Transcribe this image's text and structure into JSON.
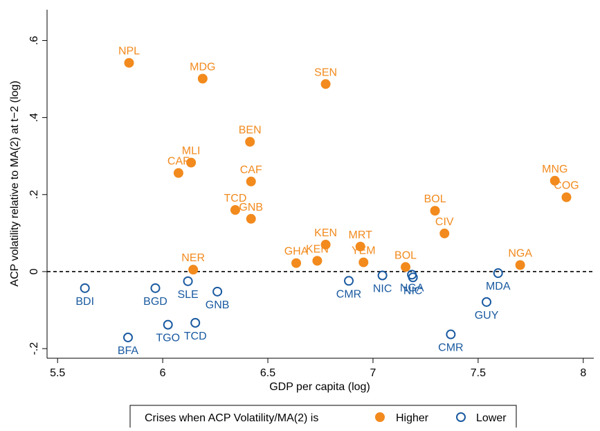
{
  "chart_data": {
    "type": "scatter",
    "xlabel": "GDP per capita (log)",
    "ylabel": "ACP volatility relative to MA(2) at t−2 (log)",
    "xlim": [
      5.45,
      8.05
    ],
    "ylim": [
      -0.225,
      0.68
    ],
    "x_ticks": [
      5.5,
      6,
      6.5,
      7,
      7.5,
      8
    ],
    "x_tick_labels": [
      "5.5",
      "6",
      "6.5",
      "7",
      "7.5",
      "8"
    ],
    "y_ticks": [
      -0.2,
      0,
      0.2,
      0.4,
      0.6
    ],
    "y_tick_labels": [
      "-.2",
      "0",
      ".2",
      ".4",
      ".6"
    ],
    "reference_line": {
      "y": 0,
      "style": "dashed"
    },
    "grid": false,
    "legend": {
      "title": "Crises when ACP Volatility/MA(2) is",
      "placement": "bottom",
      "entries": [
        "Higher",
        "Lower"
      ]
    },
    "colors": {
      "higher": "#f28a1d",
      "lower": "#1a5aa0"
    },
    "series": [
      {
        "name": "Higher",
        "marker": "filled-circle",
        "points": [
          {
            "x": 5.84,
            "y": 0.542,
            "label": "NPL"
          },
          {
            "x": 6.19,
            "y": 0.501,
            "label": "MDG"
          },
          {
            "x": 6.775,
            "y": 0.487,
            "label": "SEN"
          },
          {
            "x": 6.415,
            "y": 0.337,
            "label": "BEN"
          },
          {
            "x": 6.135,
            "y": 0.283,
            "label": "MLI"
          },
          {
            "x": 6.075,
            "y": 0.256,
            "label": "CAF"
          },
          {
            "x": 6.42,
            "y": 0.234,
            "label": "CAF"
          },
          {
            "x": 6.345,
            "y": 0.16,
            "label": "TCD"
          },
          {
            "x": 6.42,
            "y": 0.137,
            "label": "GNB"
          },
          {
            "x": 6.145,
            "y": 0.005,
            "label": "NER"
          },
          {
            "x": 6.635,
            "y": 0.022,
            "label": "GHA"
          },
          {
            "x": 6.735,
            "y": 0.028,
            "label": "KEN"
          },
          {
            "x": 6.775,
            "y": 0.07,
            "label": "KEN"
          },
          {
            "x": 6.94,
            "y": 0.065,
            "label": "MRT"
          },
          {
            "x": 6.955,
            "y": 0.024,
            "label": "YEM"
          },
          {
            "x": 7.155,
            "y": 0.012,
            "label": "BOL"
          },
          {
            "x": 7.295,
            "y": 0.158,
            "label": "BOL"
          },
          {
            "x": 7.34,
            "y": 0.099,
            "label": "CIV"
          },
          {
            "x": 7.7,
            "y": 0.017,
            "label": "NGA"
          },
          {
            "x": 7.865,
            "y": 0.236,
            "label": "MNG"
          },
          {
            "x": 7.92,
            "y": 0.193,
            "label": "COG"
          }
        ]
      },
      {
        "name": "Lower",
        "marker": "hollow-circle",
        "points": [
          {
            "x": 5.63,
            "y": -0.043,
            "label": "BDI"
          },
          {
            "x": 5.965,
            "y": -0.043,
            "label": "BGD"
          },
          {
            "x": 6.12,
            "y": -0.025,
            "label": "SLE"
          },
          {
            "x": 6.26,
            "y": -0.052,
            "label": "GNB"
          },
          {
            "x": 5.835,
            "y": -0.171,
            "label": "BFA"
          },
          {
            "x": 6.025,
            "y": -0.138,
            "label": "TGO"
          },
          {
            "x": 6.155,
            "y": -0.133,
            "label": "TCD"
          },
          {
            "x": 6.885,
            "y": -0.024,
            "label": "CMR"
          },
          {
            "x": 7.045,
            "y": -0.01,
            "label": "NIC"
          },
          {
            "x": 7.185,
            "y": -0.008,
            "label": "NGA"
          },
          {
            "x": 7.19,
            "y": -0.015,
            "label": "NIC"
          },
          {
            "x": 7.595,
            "y": -0.004,
            "label": "MDA"
          },
          {
            "x": 7.54,
            "y": -0.079,
            "label": "GUY"
          },
          {
            "x": 7.37,
            "y": -0.163,
            "label": "CMR"
          }
        ]
      }
    ]
  }
}
